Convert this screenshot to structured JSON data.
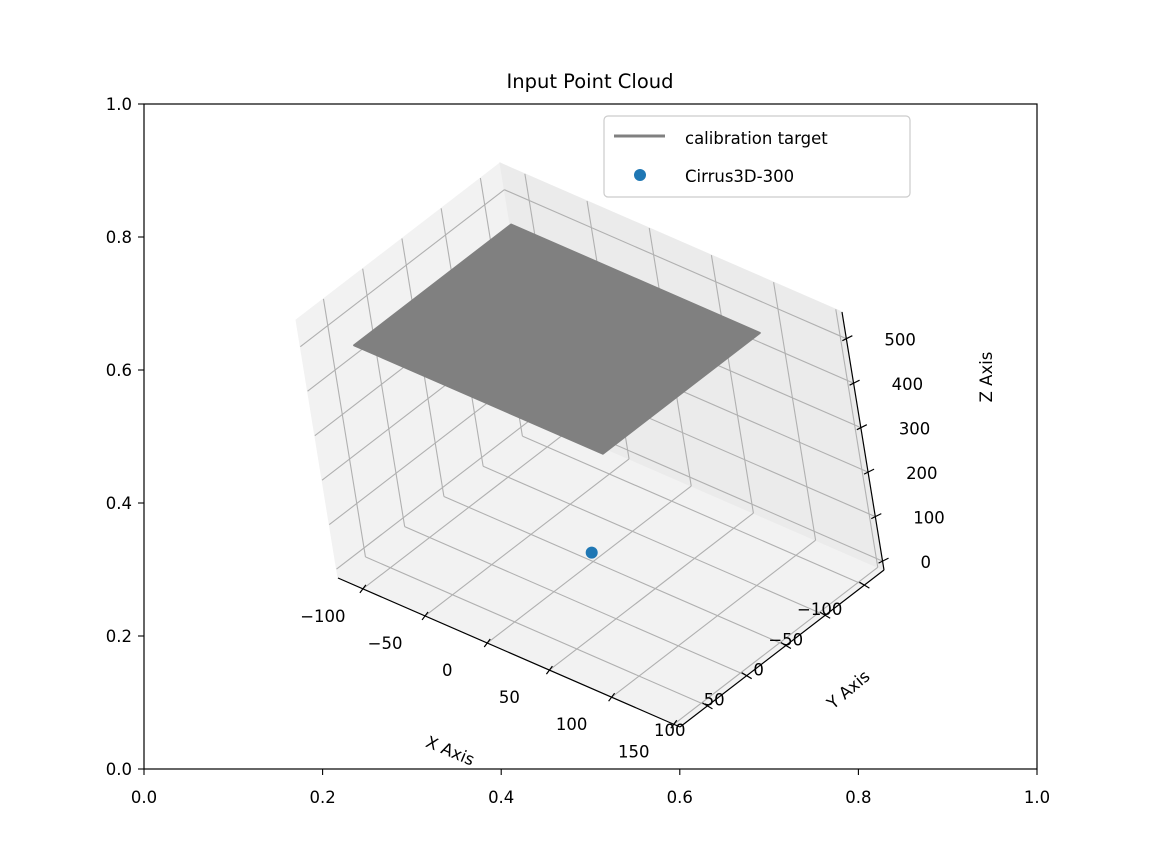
{
  "chart_data": {
    "type": "scatter",
    "title": "Input Point Cloud",
    "outer_axes": {
      "xlim": [
        0.0,
        1.0
      ],
      "ylim": [
        0.0,
        1.0
      ],
      "xticks": [
        "0.0",
        "0.2",
        "0.4",
        "0.6",
        "0.8",
        "1.0"
      ],
      "yticks": [
        "0.0",
        "0.2",
        "0.4",
        "0.6",
        "0.8",
        "1.0"
      ]
    },
    "axes3d": {
      "xlabel": "X Axis",
      "ylabel": "Y Axis",
      "zlabel": "Z Axis",
      "xlim": [
        -120,
        155
      ],
      "ylim": [
        -125,
        135
      ],
      "zlim": [
        -20,
        560
      ],
      "xticks": [
        -100,
        -50,
        0,
        50,
        100,
        150
      ],
      "yticks": [
        -100,
        -50,
        0,
        50,
        100
      ],
      "zticks": [
        0,
        100,
        200,
        300,
        400,
        500
      ],
      "grid": true
    },
    "legend": {
      "placement": "upper-right",
      "entries": [
        {
          "label": "calibration target",
          "marker": "line",
          "color": "#808080"
        },
        {
          "label": "Cirrus3D-300",
          "marker": "dot",
          "color": "#1f77b4"
        }
      ]
    },
    "series": [
      {
        "name": "calibration target",
        "kind": "surface",
        "color": "#808080",
        "corners": [
          {
            "x": -100,
            "y": 100,
            "z": 480
          },
          {
            "x": 100,
            "y": 100,
            "z": 480
          },
          {
            "x": 100,
            "y": -100,
            "z": 480
          },
          {
            "x": -100,
            "y": -100,
            "z": 480
          }
        ]
      },
      {
        "name": "Cirrus3D-300",
        "kind": "point",
        "color": "#1f77b4",
        "points": [
          {
            "x": 0,
            "y": 0,
            "z": 0
          }
        ]
      }
    ]
  }
}
